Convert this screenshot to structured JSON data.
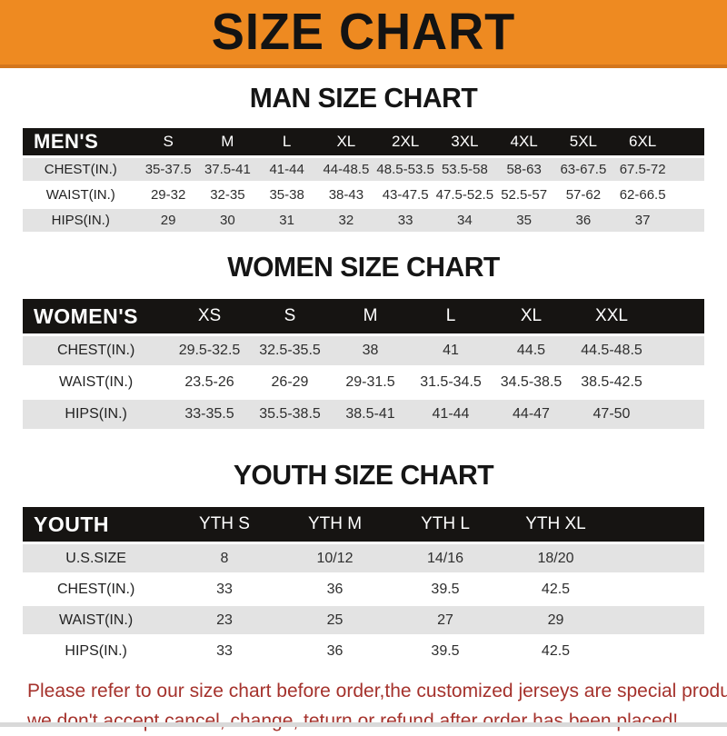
{
  "banner": {
    "title": "SIZE CHART",
    "bg_color": "#ee8a21",
    "text_color": "#131313"
  },
  "colors": {
    "table_header_bg": "#161412",
    "stripe_row_bg": "#e3e3e3",
    "disclaimer_text": "#a5322c"
  },
  "tables": [
    {
      "id": "men",
      "heading": "MAN SIZE CHART",
      "header_label": "MEN'S",
      "sizes": [
        "S",
        "M",
        "L",
        "XL",
        "2XL",
        "3XL",
        "4XL",
        "5XL",
        "6XL"
      ],
      "rows": [
        {
          "label": "CHEST(IN.)",
          "values": [
            "35-37.5",
            "37.5-41",
            "41-44",
            "44-48.5",
            "48.5-53.5",
            "53.5-58",
            "58-63",
            "63-67.5",
            "67.5-72"
          ]
        },
        {
          "label": "WAIST(IN.)",
          "values": [
            "29-32",
            "32-35",
            "35-38",
            "38-43",
            "43-47.5",
            "47.5-52.5",
            "52.5-57",
            "57-62",
            "62-66.5"
          ]
        },
        {
          "label": "HIPS(IN.)",
          "values": [
            "29",
            "30",
            "31",
            "32",
            "33",
            "34",
            "35",
            "36",
            "37"
          ]
        }
      ]
    },
    {
      "id": "women",
      "heading": "WOMEN SIZE CHART",
      "header_label": "WOMEN'S",
      "sizes": [
        "XS",
        "S",
        "M",
        "L",
        "XL",
        "XXL"
      ],
      "rows": [
        {
          "label": "CHEST(IN.)",
          "values": [
            "29.5-32.5",
            "32.5-35.5",
            "38",
            "41",
            "44.5",
            "44.5-48.5"
          ]
        },
        {
          "label": "WAIST(IN.)",
          "values": [
            "23.5-26",
            "26-29",
            "29-31.5",
            "31.5-34.5",
            "34.5-38.5",
            "38.5-42.5"
          ]
        },
        {
          "label": "HIPS(IN.)",
          "values": [
            "33-35.5",
            "35.5-38.5",
            "38.5-41",
            "41-44",
            "44-47",
            "47-50"
          ]
        }
      ]
    },
    {
      "id": "youth",
      "heading": "YOUTH SIZE CHART",
      "header_label": "YOUTH",
      "sizes": [
        "YTH S",
        "YTH M",
        "YTH L",
        "YTH XL"
      ],
      "rows": [
        {
          "label": "U.S.SIZE",
          "values": [
            "8",
            "10/12",
            "14/16",
            "18/20"
          ]
        },
        {
          "label": "CHEST(IN.)",
          "values": [
            "33",
            "36",
            "39.5",
            "42.5"
          ]
        },
        {
          "label": "WAIST(IN.)",
          "values": [
            "23",
            "25",
            "27",
            "29"
          ]
        },
        {
          "label": "HIPS(IN.)",
          "values": [
            "33",
            "36",
            "39.5",
            "42.5"
          ]
        }
      ]
    }
  ],
  "disclaimer": {
    "lines": [
      "Please refer to our size chart before order,the customized jerseys are special products,",
      "we don't accept cancel, change, teturn or refund after order has been placed!"
    ]
  }
}
